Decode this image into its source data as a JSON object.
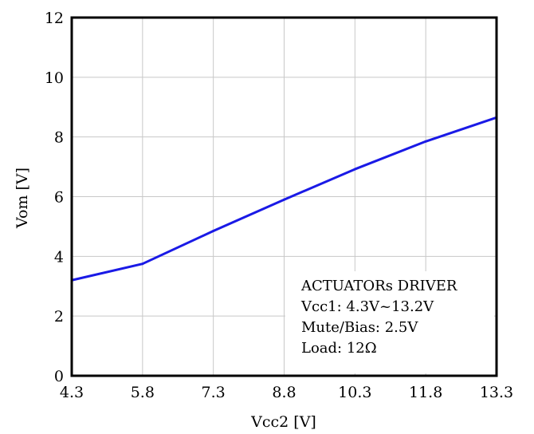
{
  "chart_data": {
    "type": "line",
    "title": "",
    "xlabel": "Vcc2 [V]",
    "ylabel": "Vom [V]",
    "xlim": [
      4.3,
      13.3
    ],
    "ylim": [
      0,
      12
    ],
    "x_ticks": [
      4.3,
      5.8,
      7.3,
      8.8,
      10.3,
      11.8,
      13.3
    ],
    "x_tick_labels": [
      "4.3",
      "5.8",
      "7.3",
      "8.8",
      "10.3",
      "11.8",
      "13.3"
    ],
    "y_ticks": [
      0,
      2,
      4,
      6,
      8,
      10,
      12
    ],
    "y_tick_labels": [
      "0",
      "2",
      "4",
      "6",
      "8",
      "10",
      "12"
    ],
    "grid": true,
    "series": [
      {
        "color": "#1a1ae6",
        "x": [
          4.3,
          5.8,
          7.3,
          8.8,
          10.3,
          11.8,
          13.3
        ],
        "y": [
          3.2,
          3.75,
          4.85,
          5.9,
          6.92,
          7.85,
          8.65
        ]
      }
    ],
    "annotation_lines": [
      "ACTUATORs DRIVER",
      "Vcc1: 4.3V~13.2V",
      "Mute/Bias: 2.5V",
      "Load: 12Ω"
    ]
  }
}
